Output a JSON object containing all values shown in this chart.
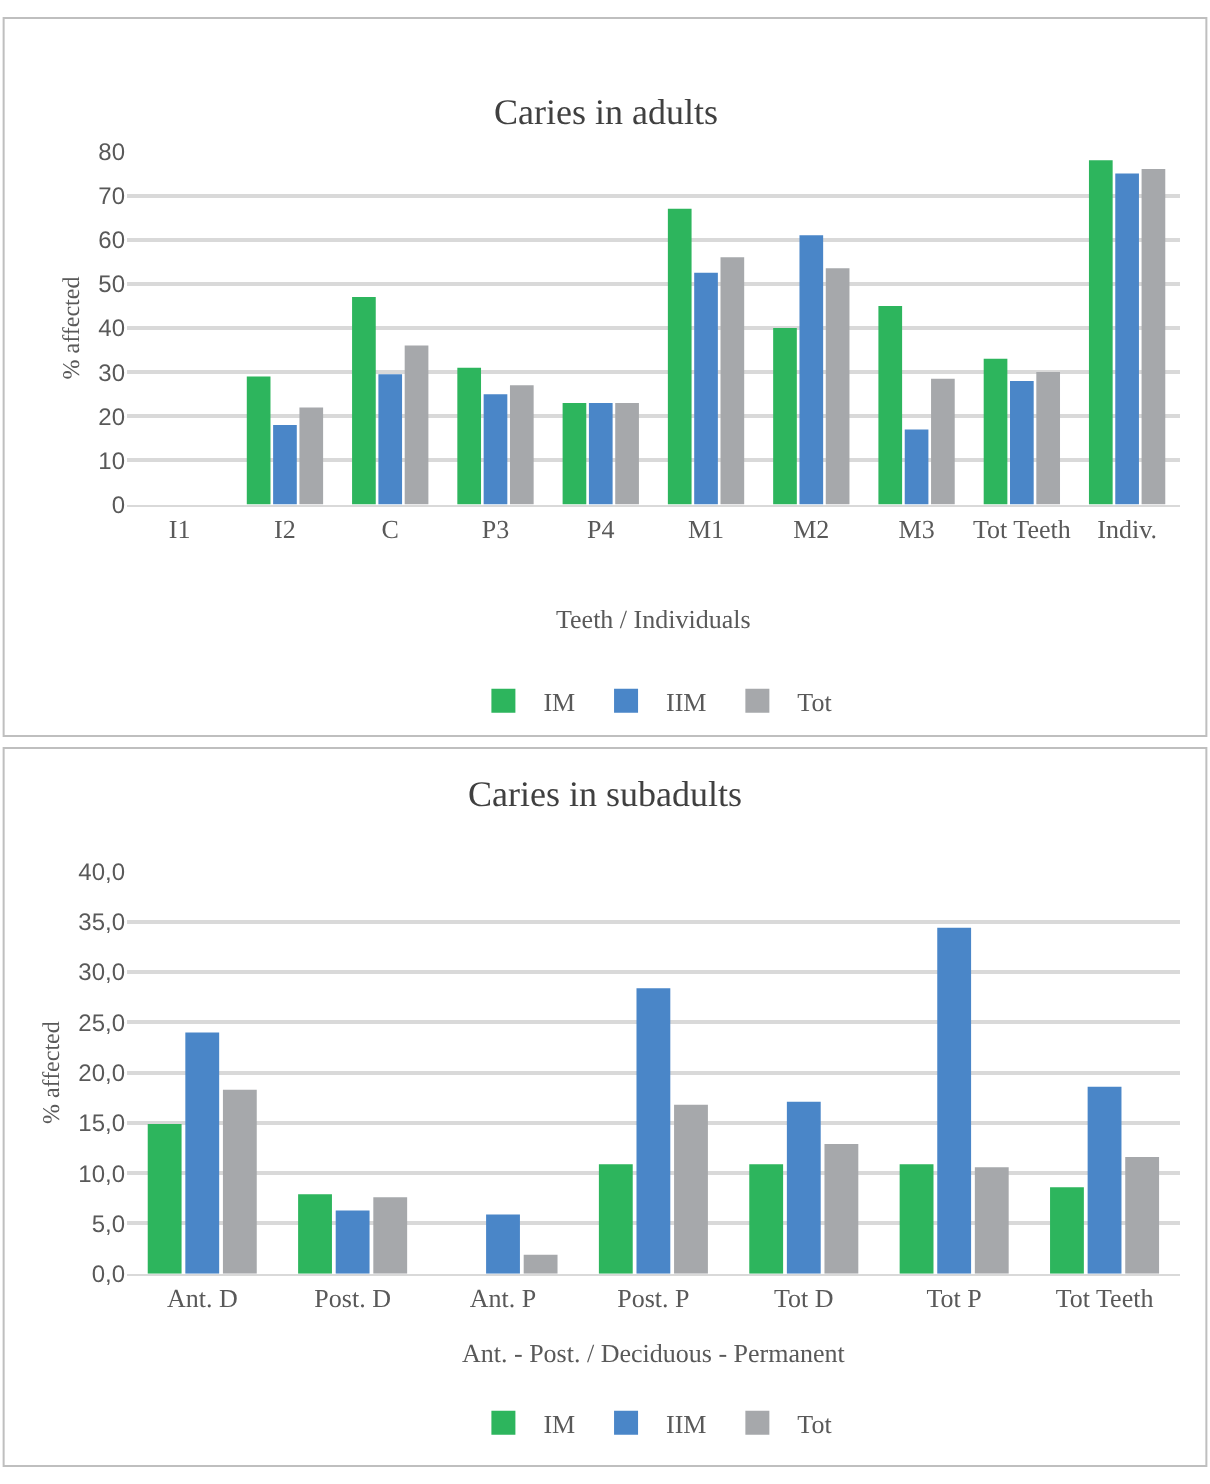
{
  "chart_data": [
    {
      "type": "bar",
      "title": "Caries in adults",
      "xlabel": "Teeth / Individuals",
      "ylabel": "% affected",
      "categories": [
        "I1",
        "I2",
        "C",
        "P3",
        "P4",
        "M1",
        "M2",
        "M3",
        "Tot Teeth",
        "Indiv."
      ],
      "series": [
        {
          "name": "IM",
          "color": "#2db55d",
          "values": [
            null,
            29,
            47,
            31,
            23,
            67,
            40,
            45,
            33,
            78
          ]
        },
        {
          "name": "IIM",
          "color": "#4a86c8",
          "values": [
            null,
            18,
            29.5,
            25,
            23,
            52.5,
            61,
            17,
            28,
            75
          ]
        },
        {
          "name": "Tot",
          "color": "#a6a8ab",
          "values": [
            null,
            22,
            36,
            27,
            23,
            56,
            53.5,
            28.5,
            30,
            76
          ]
        }
      ],
      "ylim": [
        0,
        80
      ],
      "yticks": [
        0,
        10,
        20,
        30,
        40,
        50,
        60,
        70,
        80
      ],
      "grid": "y",
      "legend": "bottom"
    },
    {
      "type": "bar",
      "title": "Caries in subadults",
      "xlabel": "Ant. - Post. / Deciduous - Permanent",
      "ylabel": "% affected",
      "categories": [
        "Ant. D",
        "Post. D",
        "Ant. P",
        "Post. P",
        "Tot D",
        "Tot P",
        "Tot Teeth"
      ],
      "series": [
        {
          "name": "IM",
          "color": "#2db55d",
          "values": [
            14.9,
            7.9,
            null,
            10.9,
            10.9,
            10.9,
            8.6
          ]
        },
        {
          "name": "IIM",
          "color": "#4a86c8",
          "values": [
            24,
            6.3,
            5.9,
            28.4,
            17.1,
            34.4,
            18.6
          ]
        },
        {
          "name": "Tot",
          "color": "#a6a8ab",
          "values": [
            18.3,
            7.6,
            1.9,
            16.8,
            12.9,
            10.6,
            11.6
          ]
        }
      ],
      "ylim": [
        0,
        40
      ],
      "yticks": [
        {
          "value": 0,
          "label": "0,0"
        },
        {
          "value": 5,
          "label": "5,0"
        },
        {
          "value": 10,
          "label": "10,0"
        },
        {
          "value": 15,
          "label": "15,0"
        },
        {
          "value": 20,
          "label": "20,0"
        },
        {
          "value": 25,
          "label": "25,0"
        },
        {
          "value": 30,
          "label": "30,0"
        },
        {
          "value": 35,
          "label": "35,0"
        },
        {
          "value": 40,
          "label": "40,0"
        }
      ],
      "grid": "y",
      "legend": "bottom"
    }
  ]
}
